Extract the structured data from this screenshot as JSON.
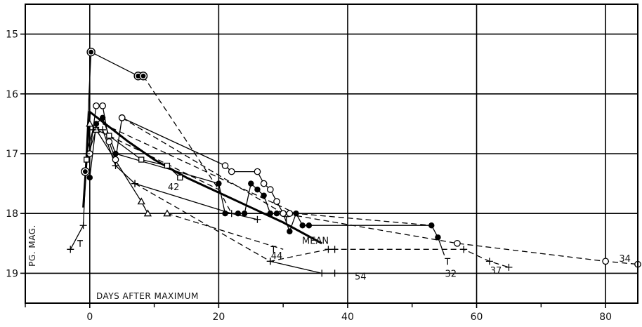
{
  "chart_data": {
    "type": "line",
    "xlabel": "DAYS AFTER MAXIMUM",
    "ylabel": "PG. MAG.",
    "xlim": [
      -10,
      85
    ],
    "ylim": [
      19.5,
      14.5
    ],
    "y_inverted": true,
    "grid": true,
    "x_ticks": [
      0,
      20,
      40,
      60,
      80
    ],
    "y_ticks": [
      15,
      16,
      17,
      18,
      19
    ],
    "series": [
      {
        "name": "MEAN",
        "style": "thick-solid",
        "marker": "none",
        "points": [
          [
            -1,
            17.9
          ],
          [
            0,
            16.3
          ],
          [
            3,
            16.55
          ],
          [
            6,
            16.8
          ],
          [
            10,
            17.1
          ],
          [
            15,
            17.4
          ],
          [
            20,
            17.65
          ],
          [
            25,
            17.9
          ],
          [
            30,
            18.15
          ],
          [
            36,
            18.5
          ]
        ]
      },
      {
        "name": "",
        "style": "solid",
        "marker": "double-circle",
        "points": [
          [
            -0.7,
            17.3
          ],
          [
            0.2,
            15.3
          ],
          [
            7.5,
            15.7
          ],
          [
            8.3,
            15.7
          ]
        ]
      },
      {
        "name": "",
        "style": "dashed",
        "marker": "none",
        "points": [
          [
            8.3,
            15.7
          ],
          [
            20,
            17.6
          ],
          [
            22,
            18.0
          ]
        ]
      },
      {
        "name": "",
        "style": "solid",
        "marker": "filled-circle",
        "points": [
          [
            0,
            17.4
          ],
          [
            1,
            16.5
          ],
          [
            2,
            16.4
          ],
          [
            4,
            17.0
          ],
          [
            20,
            17.5
          ],
          [
            21,
            18.0
          ],
          [
            23,
            18.0
          ],
          [
            24,
            18.0
          ],
          [
            25,
            17.5
          ],
          [
            26,
            17.6
          ],
          [
            27,
            17.7
          ],
          [
            28,
            18.0
          ],
          [
            29,
            18.0
          ],
          [
            30,
            18.0
          ],
          [
            31,
            18.3
          ],
          [
            32,
            18.0
          ],
          [
            33,
            18.2
          ],
          [
            34,
            18.2
          ],
          [
            53,
            18.2
          ],
          [
            54,
            18.4
          ]
        ]
      },
      {
        "name": "",
        "style": "solid",
        "marker": "open-circle",
        "points": [
          [
            0,
            17.0
          ],
          [
            1,
            16.2
          ],
          [
            2,
            16.2
          ],
          [
            3,
            16.8
          ],
          [
            4,
            17.1
          ],
          [
            5,
            16.4
          ],
          [
            21,
            17.2
          ],
          [
            22,
            17.3
          ],
          [
            26,
            17.3
          ],
          [
            27,
            17.5
          ],
          [
            28,
            17.6
          ],
          [
            29,
            17.8
          ],
          [
            30,
            18.0
          ],
          [
            31,
            18.0
          ]
        ]
      },
      {
        "name": "",
        "style": "dashed",
        "marker": "open-circle",
        "points": [
          [
            5,
            16.4
          ],
          [
            30,
            18.0
          ],
          [
            57,
            18.5
          ],
          [
            80,
            18.8
          ],
          [
            85,
            18.85
          ]
        ]
      },
      {
        "name": "",
        "style": "dashed",
        "marker": "none",
        "points": [
          [
            2,
            16.5
          ],
          [
            32,
            18.0
          ],
          [
            53,
            18.2
          ]
        ]
      },
      {
        "name": "",
        "style": "solid",
        "marker": "open-square",
        "points": [
          [
            -0.5,
            17.1
          ],
          [
            1,
            16.6
          ],
          [
            3,
            16.7
          ],
          [
            8,
            17.1
          ],
          [
            12,
            17.2
          ],
          [
            14,
            17.4
          ]
        ]
      },
      {
        "name": "",
        "style": "dashed",
        "marker": "none",
        "points": [
          [
            3,
            16.7
          ],
          [
            20,
            17.6
          ]
        ]
      },
      {
        "name": "",
        "style": "solid",
        "marker": "open-triangle",
        "points": [
          [
            0,
            16.5
          ],
          [
            1,
            16.6
          ],
          [
            8,
            17.8
          ],
          [
            9,
            18.0
          ],
          [
            12,
            18.0
          ]
        ]
      },
      {
        "name": "",
        "style": "dashed",
        "marker": "none",
        "points": [
          [
            12,
            18.0
          ],
          [
            30,
            18.6
          ]
        ]
      },
      {
        "name": "",
        "style": "solid",
        "marker": "cross",
        "points": [
          [
            -3,
            18.6
          ],
          [
            -1,
            18.2
          ],
          [
            -0.5,
            17.0
          ],
          [
            0.5,
            16.6
          ],
          [
            2,
            16.6
          ],
          [
            4,
            17.2
          ],
          [
            7,
            17.5
          ],
          [
            22,
            18.0
          ],
          [
            26,
            18.1
          ]
        ]
      },
      {
        "name": "",
        "style": "dashed",
        "marker": "cross",
        "points": [
          [
            7,
            17.5
          ],
          [
            28,
            18.8
          ],
          [
            37,
            18.6
          ],
          [
            38,
            18.6
          ],
          [
            58,
            18.6
          ],
          [
            62,
            18.8
          ],
          [
            65,
            18.9
          ]
        ]
      },
      {
        "name": "",
        "style": "solid",
        "marker": "cross",
        "points": [
          [
            28,
            18.8
          ],
          [
            36,
            19.0
          ],
          [
            38,
            19.0
          ]
        ]
      },
      {
        "name": "",
        "style": "solid",
        "marker": "none",
        "points": [
          [
            54,
            18.4
          ],
          [
            55,
            18.7
          ]
        ]
      }
    ],
    "point_labels": [
      {
        "text": "42",
        "x": 13,
        "y": 17.55
      },
      {
        "text": "44",
        "x": 29,
        "y": 18.7
      },
      {
        "text": "MEAN",
        "x": 35,
        "y": 18.45
      },
      {
        "text": "54",
        "x": 42,
        "y": 19.05
      },
      {
        "text": "32",
        "x": 56,
        "y": 19.0
      },
      {
        "text": "37",
        "x": 63,
        "y": 18.95
      },
      {
        "text": "34",
        "x": 83,
        "y": 18.75
      }
    ],
    "t_markers": [
      [
        -1.5,
        18.5
      ],
      [
        28.5,
        18.6
      ],
      [
        30.5,
        18.1
      ],
      [
        55.5,
        18.8
      ]
    ]
  }
}
